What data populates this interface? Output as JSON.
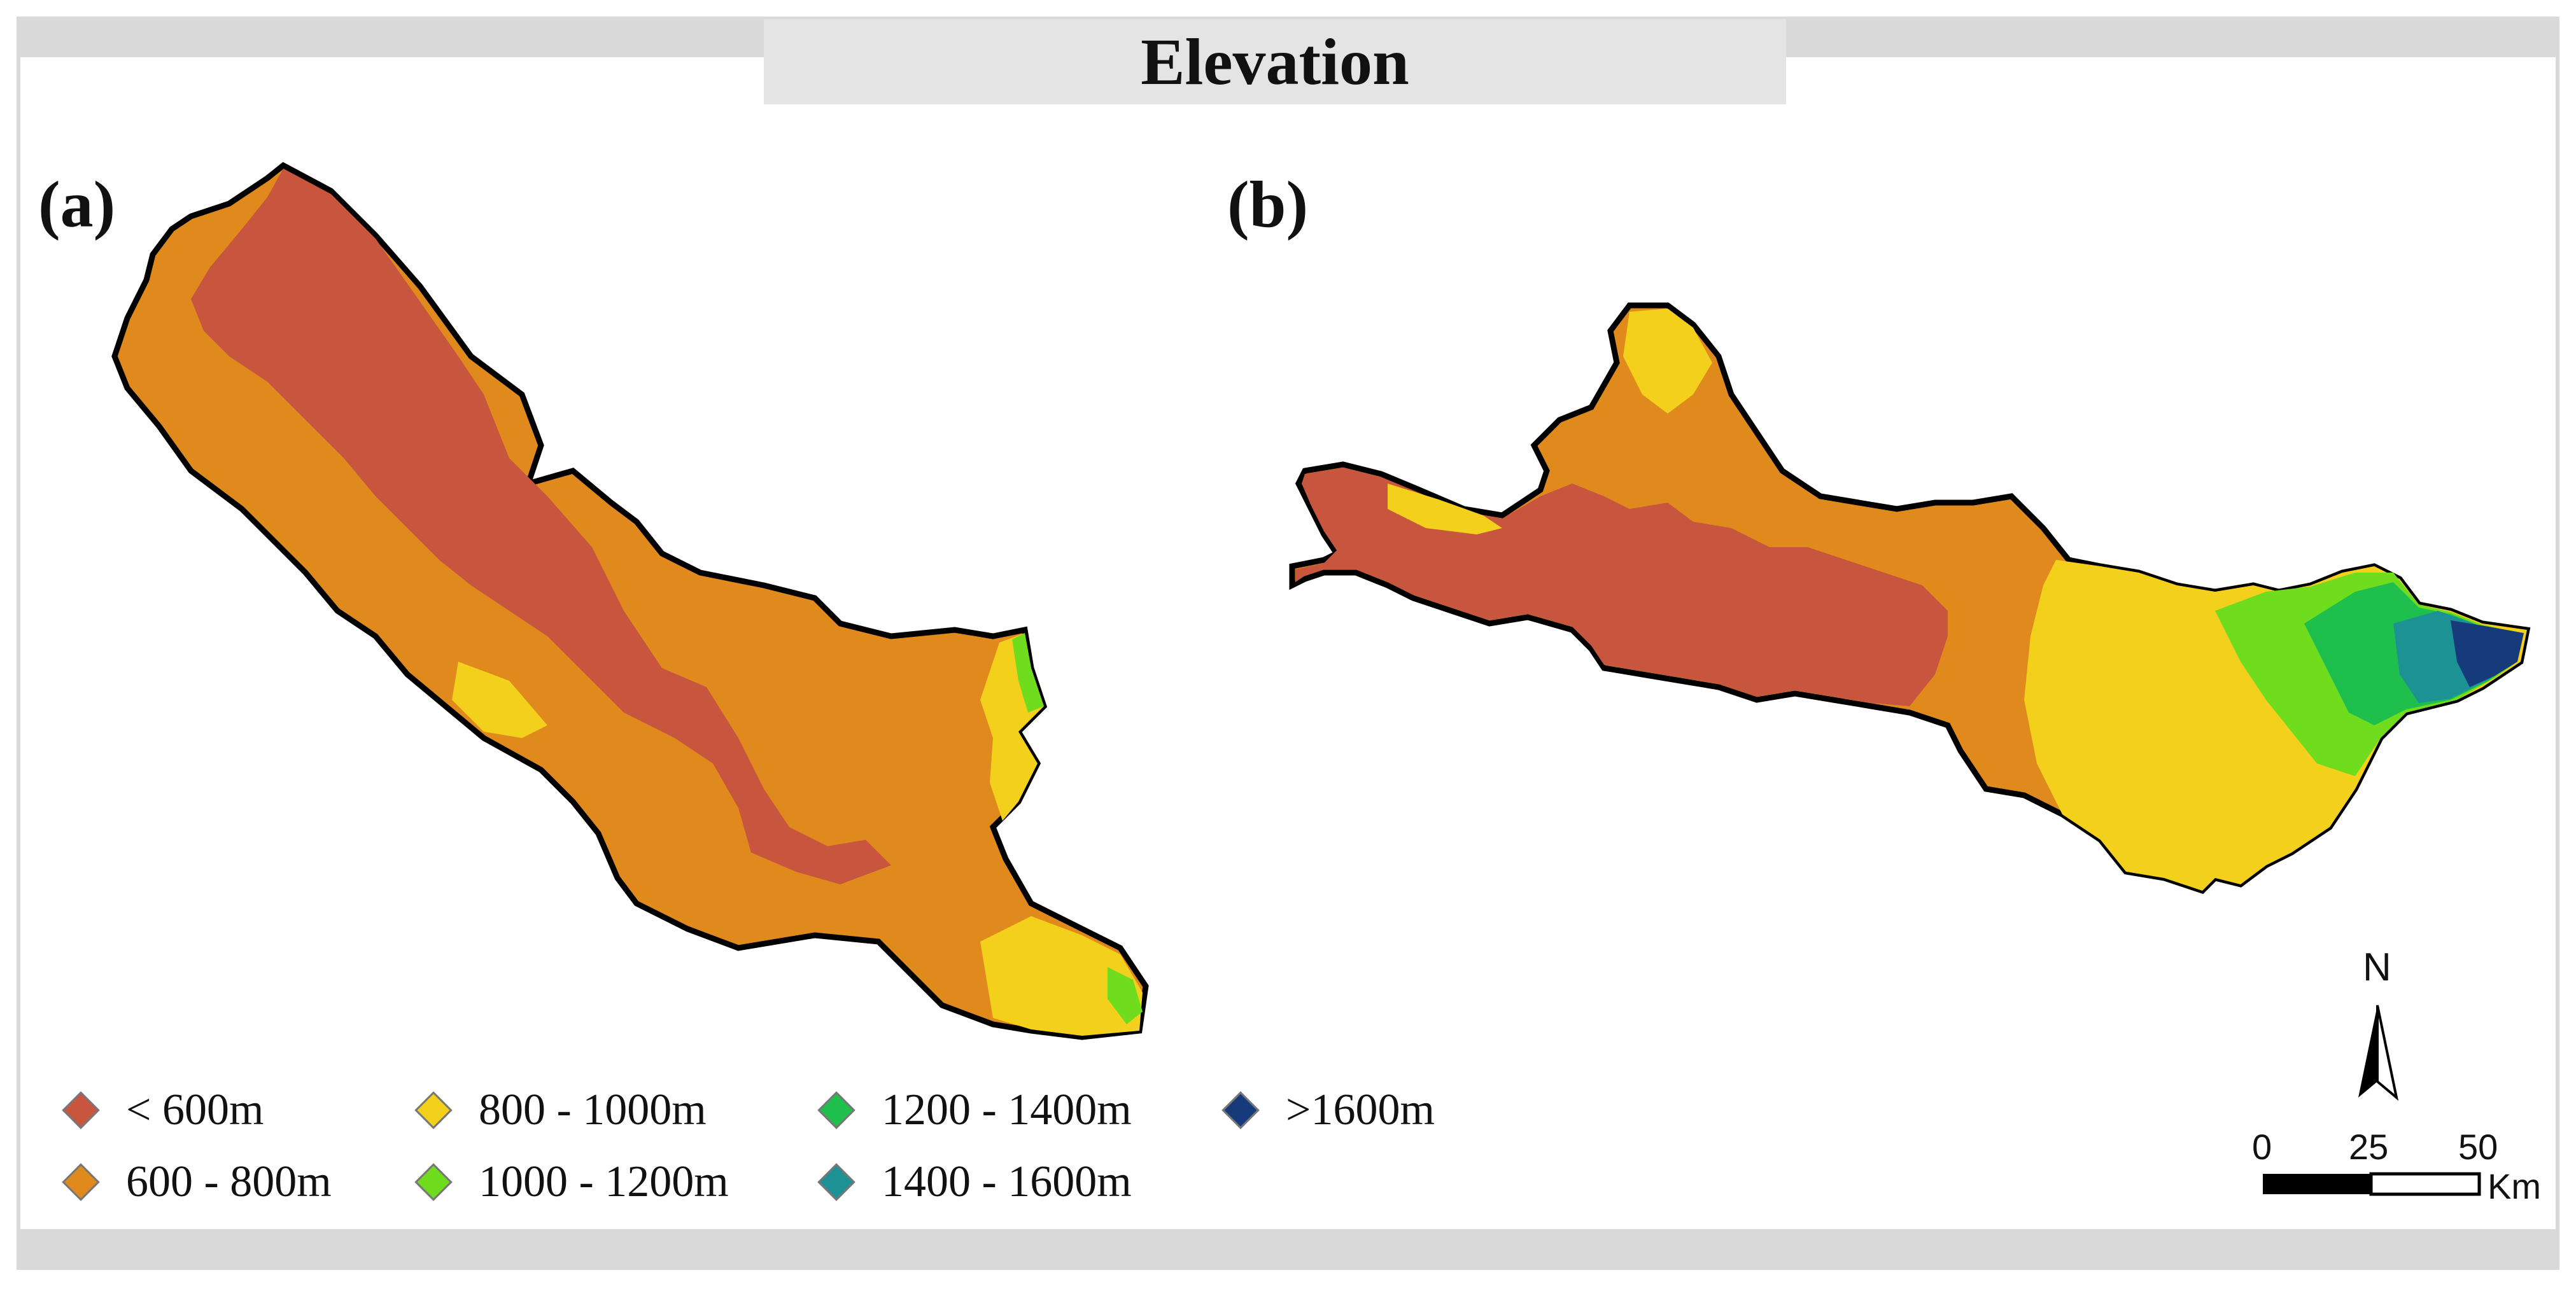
{
  "title": "Elevation",
  "panels": {
    "a": "(a)",
    "b": "(b)"
  },
  "legend": [
    {
      "label": "< 600m",
      "color": "#c8553d"
    },
    {
      "label": "600 - 800m",
      "color": "#e08a1e"
    },
    {
      "label": "800 - 1000m",
      "color": "#f2d01c"
    },
    {
      "label": "1000 - 1200m",
      "color": "#6fdc1e"
    },
    {
      "label": "1200 - 1400m",
      "color": "#1fbf4d"
    },
    {
      "label": "1400 - 1600m",
      "color": "#1d9294"
    },
    {
      "label": ">1600m",
      "color": "#163a7a"
    }
  ],
  "north_arrow": {
    "label": "N"
  },
  "scale_bar": {
    "ticks": [
      "0",
      "25",
      "50"
    ],
    "unit": "Km"
  }
}
